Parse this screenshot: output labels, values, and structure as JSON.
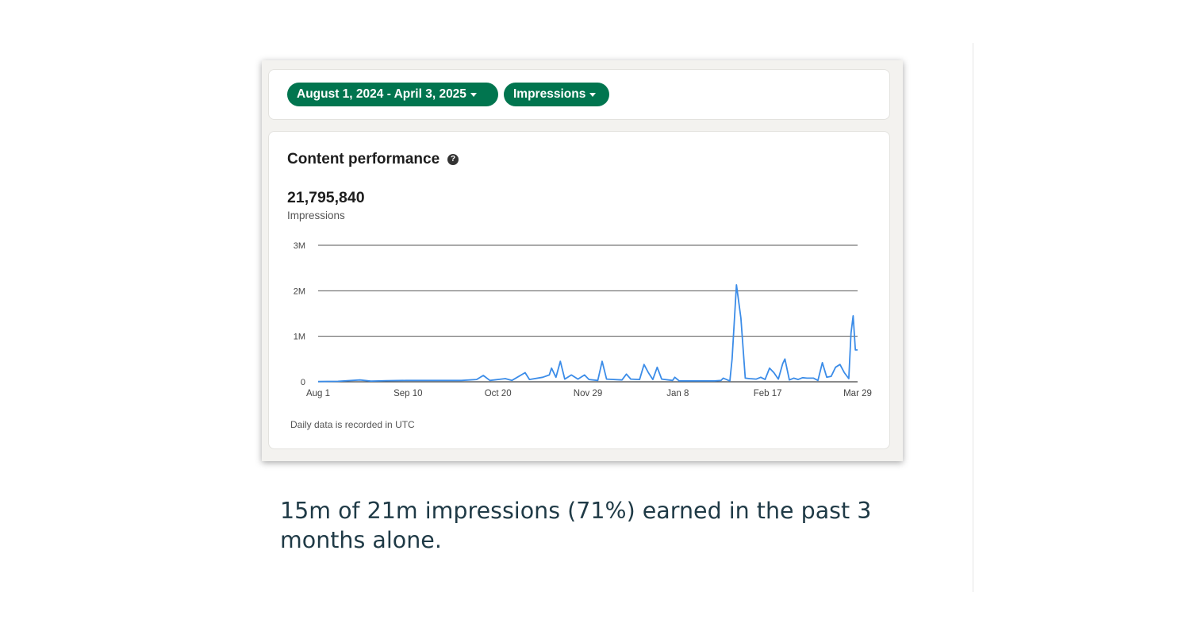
{
  "filters": {
    "date_range_label": "August 1, 2024 - April 3, 2025",
    "metric_label": "Impressions"
  },
  "card": {
    "title": "Content performance",
    "help_glyph": "?",
    "total_value": "21,795,840",
    "total_label": "Impressions",
    "footnote": "Daily data is recorded in UTC"
  },
  "caption": "15m of 21m impressions (71%) earned in the past 3 months alone.",
  "colors": {
    "accent": "#01754f",
    "line": "#3b8ce8",
    "caption_text": "#1f3a46"
  },
  "chart_data": {
    "type": "line",
    "title": "",
    "xlabel": "",
    "ylabel": "",
    "x_tick_labels": [
      "Aug 1",
      "Sep 10",
      "Oct 20",
      "Nov 29",
      "Jan 8",
      "Feb 17",
      "Mar 29"
    ],
    "y_tick_labels": [
      "0",
      "1M",
      "2M",
      "3M"
    ],
    "ylim": [
      0,
      3000000
    ],
    "x_range": [
      "2024-08-01",
      "2025-04-03"
    ],
    "grid": true,
    "series": [
      {
        "name": "",
        "points": [
          [
            "2024-08-01",
            5000
          ],
          [
            "2024-08-10",
            10000
          ],
          [
            "2024-08-20",
            40000
          ],
          [
            "2024-08-25",
            15000
          ],
          [
            "2024-09-01",
            25000
          ],
          [
            "2024-09-10",
            30000
          ],
          [
            "2024-09-20",
            30000
          ],
          [
            "2024-09-30",
            30000
          ],
          [
            "2024-10-05",
            30000
          ],
          [
            "2024-10-12",
            50000
          ],
          [
            "2024-10-15",
            140000
          ],
          [
            "2024-10-18",
            30000
          ],
          [
            "2024-10-25",
            70000
          ],
          [
            "2024-10-28",
            30000
          ],
          [
            "2024-11-03",
            200000
          ],
          [
            "2024-11-05",
            50000
          ],
          [
            "2024-11-11",
            100000
          ],
          [
            "2024-11-14",
            150000
          ],
          [
            "2024-11-15",
            300000
          ],
          [
            "2024-11-17",
            100000
          ],
          [
            "2024-11-19",
            450000
          ],
          [
            "2024-11-21",
            60000
          ],
          [
            "2024-11-24",
            150000
          ],
          [
            "2024-11-27",
            60000
          ],
          [
            "2024-11-30",
            150000
          ],
          [
            "2024-12-02",
            50000
          ],
          [
            "2024-12-06",
            30000
          ],
          [
            "2024-12-08",
            450000
          ],
          [
            "2024-12-10",
            60000
          ],
          [
            "2024-12-17",
            40000
          ],
          [
            "2024-12-19",
            170000
          ],
          [
            "2024-12-21",
            60000
          ],
          [
            "2024-12-25",
            50000
          ],
          [
            "2024-12-27",
            380000
          ],
          [
            "2024-12-29",
            200000
          ],
          [
            "2024-12-31",
            50000
          ],
          [
            "2025-01-02",
            320000
          ],
          [
            "2025-01-04",
            60000
          ],
          [
            "2025-01-09",
            30000
          ],
          [
            "2025-01-10",
            100000
          ],
          [
            "2025-01-12",
            20000
          ],
          [
            "2025-01-20",
            20000
          ],
          [
            "2025-01-28",
            20000
          ],
          [
            "2025-01-31",
            30000
          ],
          [
            "2025-02-01",
            80000
          ],
          [
            "2025-02-04",
            20000
          ],
          [
            "2025-02-05",
            500000
          ],
          [
            "2025-02-07",
            2130000
          ],
          [
            "2025-02-09",
            1400000
          ],
          [
            "2025-02-11",
            80000
          ],
          [
            "2025-02-13",
            70000
          ],
          [
            "2025-02-16",
            60000
          ],
          [
            "2025-02-18",
            100000
          ],
          [
            "2025-02-20",
            50000
          ],
          [
            "2025-02-22",
            300000
          ],
          [
            "2025-02-24",
            200000
          ],
          [
            "2025-02-26",
            60000
          ],
          [
            "2025-02-28",
            400000
          ],
          [
            "2025-03-01",
            500000
          ],
          [
            "2025-03-03",
            40000
          ],
          [
            "2025-03-05",
            80000
          ],
          [
            "2025-03-07",
            50000
          ],
          [
            "2025-03-09",
            90000
          ],
          [
            "2025-03-11",
            80000
          ],
          [
            "2025-03-14",
            80000
          ],
          [
            "2025-03-16",
            30000
          ],
          [
            "2025-03-18",
            420000
          ],
          [
            "2025-03-20",
            100000
          ],
          [
            "2025-03-22",
            120000
          ],
          [
            "2025-03-24",
            320000
          ],
          [
            "2025-03-26",
            380000
          ],
          [
            "2025-03-28",
            200000
          ],
          [
            "2025-03-30",
            70000
          ],
          [
            "2025-03-31",
            1070000
          ],
          [
            "2025-04-01",
            1450000
          ],
          [
            "2025-04-02",
            700000
          ],
          [
            "2025-04-03",
            700000
          ]
        ]
      }
    ]
  }
}
